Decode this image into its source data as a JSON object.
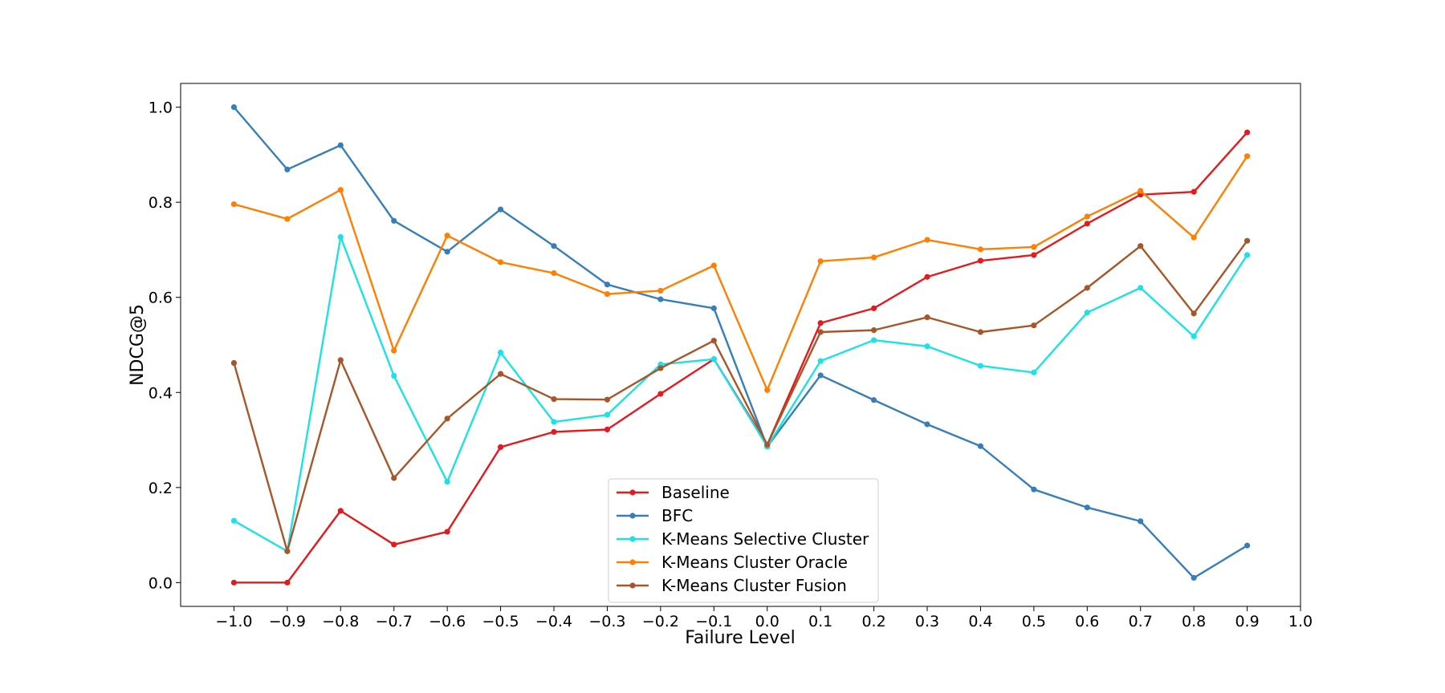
{
  "chart_data": {
    "type": "line",
    "title": "",
    "xlabel": "Failure Level",
    "ylabel": "NDCG@5",
    "xlim": [
      -1.1,
      1.0
    ],
    "ylim": [
      -0.05,
      1.05
    ],
    "x_ticks": [
      "−1.0",
      "−0.9",
      "−0.8",
      "−0.7",
      "−0.6",
      "−0.5",
      "−0.4",
      "−0.3",
      "−0.2",
      "−0.1",
      "0.0",
      "0.1",
      "0.2",
      "0.3",
      "0.4",
      "0.5",
      "0.6",
      "0.7",
      "0.8",
      "0.9",
      "1.0"
    ],
    "y_ticks": [
      "0.0",
      "0.2",
      "0.4",
      "0.6",
      "0.8",
      "1.0"
    ],
    "grid": false,
    "legend_position": "bottom-center",
    "x": [
      -1.0,
      -0.9,
      -0.8,
      -0.7,
      -0.6,
      -0.5,
      -0.4,
      -0.3,
      -0.2,
      -0.1,
      0.0,
      0.1,
      0.2,
      0.3,
      0.4,
      0.5,
      0.6,
      0.7,
      0.8,
      0.9
    ],
    "series": [
      {
        "name": "Baseline",
        "color": "#e41a1c",
        "values": [
          0.0,
          0.0,
          0.151,
          0.08,
          0.107,
          0.285,
          0.317,
          0.322,
          0.397,
          0.47,
          0.29,
          0.546,
          0.577,
          0.643,
          0.677,
          0.689,
          0.755,
          0.816,
          0.822,
          0.947
        ]
      },
      {
        "name": "BFC",
        "color": "#377eb8",
        "values": [
          1.0,
          0.869,
          0.92,
          0.761,
          0.696,
          0.785,
          0.708,
          0.627,
          0.596,
          0.577,
          0.286,
          0.436,
          0.384,
          0.333,
          0.287,
          0.196,
          0.158,
          0.129,
          0.01,
          0.078
        ]
      },
      {
        "name": "K-Means Selective Cluster",
        "color": "#1ce1e6",
        "values": [
          0.13,
          0.066,
          0.727,
          0.435,
          0.212,
          0.484,
          0.338,
          0.353,
          0.459,
          0.47,
          0.286,
          0.466,
          0.51,
          0.497,
          0.456,
          0.442,
          0.568,
          0.62,
          0.518,
          0.689
        ]
      },
      {
        "name": "K-Means Cluster Oracle",
        "color": "#ff7f00",
        "values": [
          0.796,
          0.765,
          0.826,
          0.488,
          0.73,
          0.674,
          0.651,
          0.607,
          0.614,
          0.667,
          0.405,
          0.676,
          0.684,
          0.721,
          0.701,
          0.706,
          0.77,
          0.824,
          0.726,
          0.897
        ]
      },
      {
        "name": "K-Means Cluster Fusion",
        "color": "#a65628",
        "values": [
          0.462,
          0.066,
          0.468,
          0.22,
          0.345,
          0.439,
          0.386,
          0.385,
          0.451,
          0.509,
          0.29,
          0.527,
          0.531,
          0.558,
          0.527,
          0.541,
          0.62,
          0.708,
          0.566,
          0.719
        ]
      }
    ]
  }
}
